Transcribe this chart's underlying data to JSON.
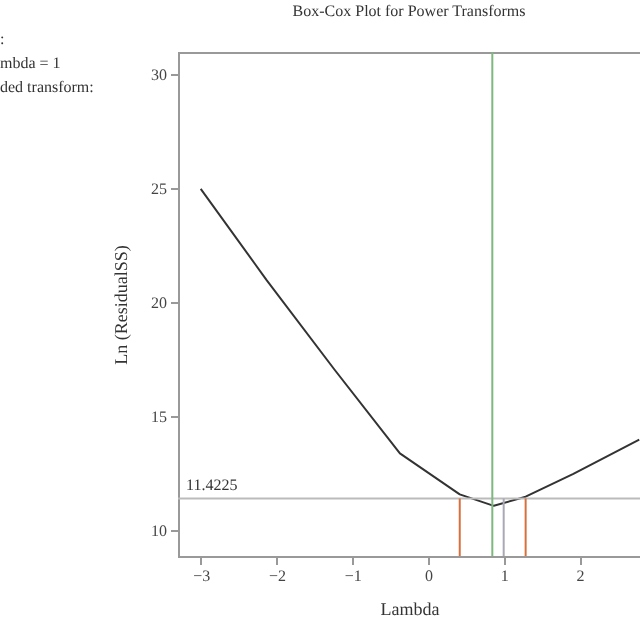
{
  "chart_data": {
    "type": "line",
    "title": "Box-Cox Plot for Power Transforms",
    "xlabel": "Lambda",
    "ylabel": "Ln (ResidualSS)",
    "x": [
      -3.0,
      -2.13,
      -1.24,
      -0.37,
      0.42,
      0.87,
      1.29,
      1.92,
      2.79
    ],
    "series": [
      {
        "color": "#333333",
        "values": [
          25.0,
          21.0,
          17.1,
          13.4,
          11.6,
          11.1,
          11.5,
          12.5,
          14.0
        ]
      }
    ],
    "xlim": [
      -3.3,
      2.8
    ],
    "ylim": [
      8.9,
      31
    ],
    "xticks": [
      -3,
      -2,
      -1,
      0,
      1,
      2
    ],
    "yticks": [
      10,
      15,
      20,
      25,
      30
    ],
    "grid": false,
    "marker": "none",
    "line_style": "solid",
    "ref_lines": [
      {
        "axis": "y",
        "value": 11.4225,
        "label": "11.4225",
        "color": "#bbbbbb"
      },
      {
        "axis": "x",
        "value": 0.85,
        "color": "#7fb87f"
      },
      {
        "axis": "x",
        "value": 1,
        "color": "#a8a8b8"
      },
      {
        "axis": "x",
        "value": 0.42,
        "color": "#d8703c"
      },
      {
        "axis": "x",
        "value": 1.29,
        "color": "#d8703c"
      }
    ],
    "annotations": [
      ":",
      "mbda = 1",
      "ded transform:"
    ]
  }
}
